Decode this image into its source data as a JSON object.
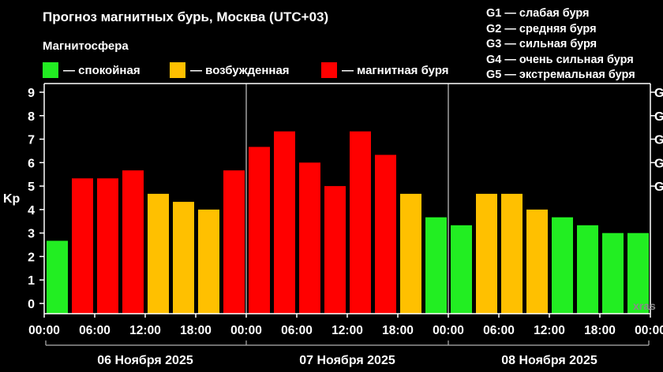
{
  "title": "Прогноз магнитных бурь, Москва (UTC+03)",
  "legend": {
    "title": "Магнитосфера",
    "items": [
      {
        "label": "— спокойная",
        "color": "#22ee22"
      },
      {
        "label": "— возбужденная",
        "color": "#ffc000"
      },
      {
        "label": "— магнитная буря",
        "color": "#ff0000"
      }
    ]
  },
  "storm_levels": [
    "G1 — слабая буря",
    "G2 — средняя буря",
    "G3 — сильная буря",
    "G4 — очень сильная буря",
    "G5 — экстремальная буря"
  ],
  "watermark": "xras",
  "chart_data": {
    "type": "bar",
    "ylabel": "Kp",
    "ylim": [
      0,
      9
    ],
    "y_ticks": [
      "0",
      "1",
      "2",
      "3",
      "4",
      "5",
      "6",
      "7",
      "8",
      "9"
    ],
    "right_ticks": [
      {
        "kp": 5,
        "label": "G"
      },
      {
        "kp": 6,
        "label": "G"
      },
      {
        "kp": 7,
        "label": "G"
      },
      {
        "kp": 8,
        "label": "G"
      },
      {
        "kp": 9,
        "label": "G"
      }
    ],
    "grid": false,
    "x_ticks": [
      "00:00",
      "06:00",
      "12:00",
      "18:00",
      "00:00",
      "06:00",
      "12:00",
      "18:00",
      "00:00",
      "06:00",
      "12:00",
      "18:00",
      "00:00"
    ],
    "days": [
      "06 Ноября 2025",
      "07 Ноября 2025",
      "08 Ноября 2025"
    ],
    "interval_hours": 3,
    "values": [
      2.67,
      5.33,
      5.33,
      5.67,
      4.67,
      4.33,
      4.0,
      5.67,
      6.67,
      7.33,
      6.0,
      5.0,
      7.33,
      6.33,
      4.67,
      3.67,
      3.33,
      4.67,
      4.67,
      4.0,
      3.67,
      3.33,
      3.0,
      3.0
    ],
    "levels": [
      "quiet",
      "storm",
      "storm",
      "storm",
      "active",
      "active",
      "active",
      "storm",
      "storm",
      "storm",
      "storm",
      "storm",
      "storm",
      "storm",
      "active",
      "quiet",
      "quiet",
      "active",
      "active",
      "active",
      "quiet",
      "quiet",
      "quiet",
      "quiet"
    ],
    "colors": {
      "quiet": "#22ee22",
      "active": "#ffc000",
      "storm": "#ff0000"
    }
  }
}
